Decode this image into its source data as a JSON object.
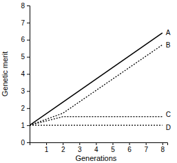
{
  "chart_data": {
    "type": "line",
    "x_label": "Generations",
    "y_label": "Genetic merit",
    "x": [
      0,
      2,
      8
    ],
    "series": [
      {
        "name": "A",
        "color": "#000000",
        "line_style": "solid",
        "values": [
          1,
          2.35,
          6.4
        ]
      },
      {
        "name": "B",
        "color": "#000000",
        "line_style": "dotted",
        "values": [
          1,
          1.7,
          5.7
        ]
      },
      {
        "name": "C",
        "color": "#000000",
        "line_style": "dotted",
        "values": [
          1,
          1.5,
          1.5
        ]
      },
      {
        "name": "D",
        "color": "#000000",
        "line_style": "dotted",
        "values": [
          1,
          1,
          1
        ]
      }
    ],
    "xlim": [
      0,
      8.3
    ],
    "xticks": [
      1,
      2,
      3,
      4,
      5,
      6,
      7,
      8
    ],
    "ylim": [
      0,
      8
    ],
    "yticks": [
      0,
      1,
      2,
      3,
      4,
      5,
      6,
      7,
      8
    ],
    "grid": false
  }
}
